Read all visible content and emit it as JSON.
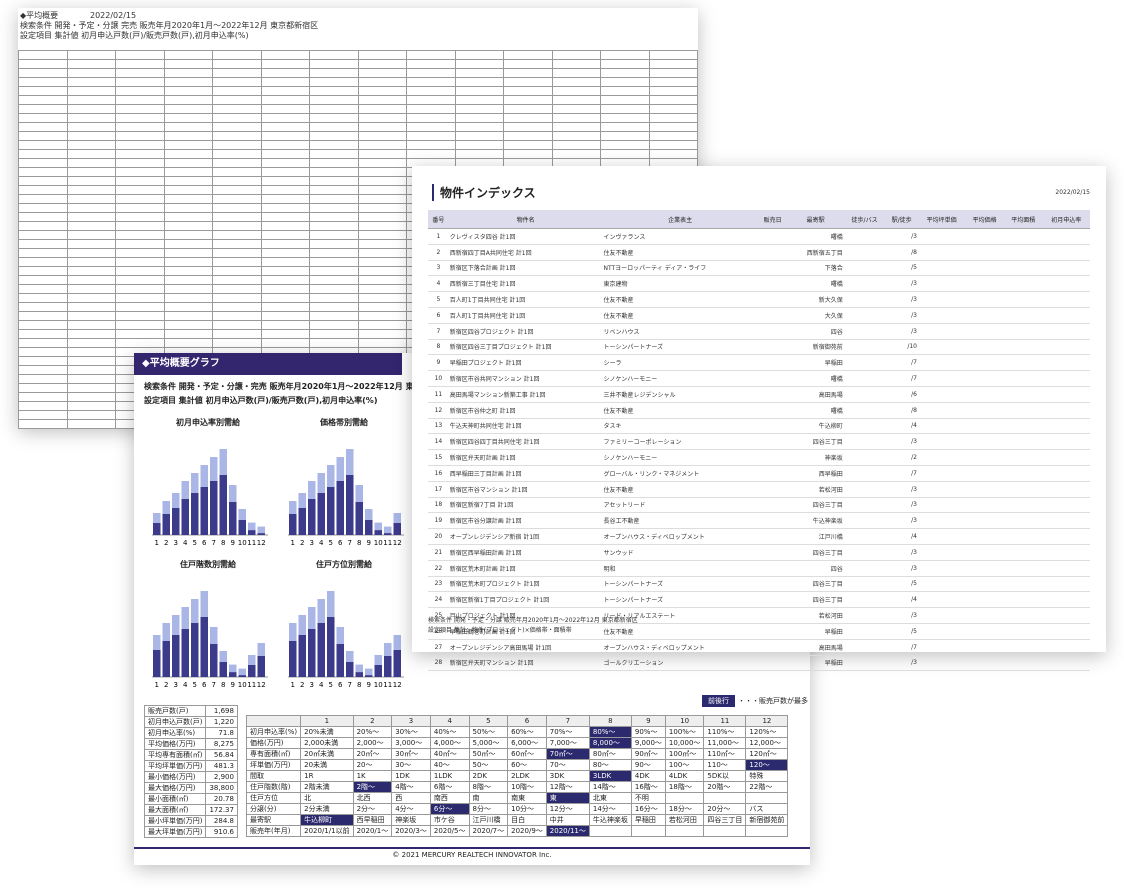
{
  "back": {
    "title": "◆平均概要",
    "date": "2022/02/15",
    "cond1": "検索条件 開発・予定・分譲 完売 販売年月2020年1月～2022年12月 東京都新宿区",
    "cond2": "設定項目 集計値 初月申込戸数(戸)/販売戸数(戸),初月申込率(%)"
  },
  "mid": {
    "title": "◆平均概要グラフ",
    "cond1": "検索条件 開発・予定・分譲・完売 販売年月2020年1月～2022年12月 東京都新宿区",
    "cond2": "設定項目 集計値 初月申込戸数(戸)/販売戸数(戸),初月申込率(%)",
    "charts": [
      {
        "title": "初月申込率別需給"
      },
      {
        "title": "価格帯別需給"
      },
      {
        "title": "住戸階数別需給"
      },
      {
        "title": "住戸方位別需給"
      }
    ],
    "axis_ticks": [
      "1",
      "2",
      "3",
      "4",
      "5",
      "6",
      "7",
      "8",
      "9",
      "10",
      "11",
      "12"
    ],
    "legend_button": "前後行",
    "legend_note": "・・・販売戸数が最多",
    "summary": [
      {
        "label": "販売戸数(戸)",
        "value": "1,698"
      },
      {
        "label": "初月申込戸数(戸)",
        "value": "1,220"
      },
      {
        "label": "初月申込率(%)",
        "value": "71.8"
      },
      {
        "label": "平均価格(万円)",
        "value": "8,275"
      },
      {
        "label": "平均専有面積(㎡)",
        "value": "56.84"
      },
      {
        "label": "平均坪単価(万円)",
        "value": "481.3"
      },
      {
        "label": "最小価格(万円)",
        "value": "2,900"
      },
      {
        "label": "最大価格(万円)",
        "value": "38,800"
      },
      {
        "label": "最小面積(㎡)",
        "value": "20.78"
      },
      {
        "label": "最大面積(㎡)",
        "value": "172.37"
      },
      {
        "label": "最小坪単価(万円)",
        "value": "284.8"
      },
      {
        "label": "最大坪単価(万円)",
        "value": "910.6"
      }
    ],
    "matrix_header": [
      "",
      "1",
      "2",
      "3",
      "4",
      "5",
      "6",
      "7",
      "8",
      "9",
      "10",
      "11",
      "12"
    ],
    "matrix": [
      [
        "初月申込率(%)",
        "20%未満",
        "20%～",
        "30%～",
        "40%～",
        "50%～",
        "60%～",
        "70%～",
        "80%～",
        "90%～",
        "100%～",
        "110%～",
        "120%～"
      ],
      [
        "価格(万円)",
        "2,000未満",
        "2,000～",
        "3,000～",
        "4,000～",
        "5,000～",
        "6,000～",
        "7,000～",
        "8,000～",
        "9,000～",
        "10,000～",
        "11,000～",
        "12,000～"
      ],
      [
        "専有面積(㎡)",
        "20㎡未満",
        "20㎡～",
        "30㎡～",
        "40㎡～",
        "50㎡～",
        "60㎡～",
        "70㎡～",
        "80㎡～",
        "90㎡～",
        "100㎡～",
        "110㎡～",
        "120㎡～"
      ],
      [
        "坪単価(万円)",
        "20未満",
        "20～",
        "30～",
        "40～",
        "50～",
        "60～",
        "70～",
        "80～",
        "90～",
        "100～",
        "110～",
        "120～"
      ],
      [
        "間取",
        "1R",
        "1K",
        "1DK",
        "1LDK",
        "2DK",
        "2LDK",
        "3DK",
        "3LDK",
        "4DK",
        "4LDK",
        "5DK以",
        "特殊"
      ],
      [
        "住戸階数(階)",
        "2階未満",
        "2階～",
        "4階～",
        "6階～",
        "8階～",
        "10階～",
        "12階～",
        "14階～",
        "16階～",
        "18階～",
        "20階～",
        "22階～"
      ],
      [
        "住戸方位",
        "北",
        "北西",
        "西",
        "南西",
        "南",
        "南東",
        "東",
        "北東",
        "不明",
        "",
        "",
        ""
      ],
      [
        "分譲(分)",
        "2分未満",
        "2分～",
        "4分～",
        "6分～",
        "8分～",
        "10分～",
        "12分～",
        "14分～",
        "16分～",
        "18分～",
        "20分～",
        "バス"
      ],
      [
        "最寄駅",
        "牛込柳町",
        "西早稲田",
        "神楽坂",
        "市ケ谷",
        "江戸川橋",
        "目白",
        "中井",
        "牛込神楽坂",
        "早稲田",
        "若松河田",
        "四谷三丁目",
        "新宿御苑前"
      ],
      [
        "販売年(年月)",
        "2020/1/1以前",
        "2020/1～",
        "2020/3～",
        "2020/5～",
        "2020/7～",
        "2020/9～",
        "2020/11～",
        "",
        "",
        "",
        "",
        ""
      ]
    ],
    "footer": "© 2021 MERCURY REALTECH INNOVATOR Inc."
  },
  "front": {
    "title": "物件インデックス",
    "date": "2022/02/15",
    "columns": [
      "番号",
      "物件名",
      "企業表主",
      "販売日",
      "最寄駅",
      "徒歩/バス",
      "駅/徒歩",
      "平均坪単価",
      "平均価格",
      "平均面積",
      "初月申込率"
    ],
    "rows": [
      {
        "no": "1",
        "name": "クレヴィスタ四谷 計1回",
        "company": "インヴァランス",
        "station": "曙橋",
        "walk": "/3"
      },
      {
        "no": "2",
        "name": "西新宿四丁目A共同住宅 計1回",
        "company": "住友不動産",
        "station": "西新宿五丁目",
        "walk": "/8"
      },
      {
        "no": "3",
        "name": "新宿区下落合計画 計1回",
        "company": "NTTヨーロッパーティ ディア・ライフ",
        "station": "下落合",
        "walk": "/5"
      },
      {
        "no": "4",
        "name": "西新宿三丁目住宅 計1回",
        "company": "東京建物",
        "station": "曙橋",
        "walk": "/3"
      },
      {
        "no": "5",
        "name": "百人町1丁目共同住宅 計1回",
        "company": "住友不動産",
        "station": "新大久保",
        "walk": "/3"
      },
      {
        "no": "6",
        "name": "百人町1丁目共同住宅 計1回",
        "company": "住友不動産",
        "station": "大久保",
        "walk": "/3"
      },
      {
        "no": "7",
        "name": "新宿区四谷プロジェクト 計1回",
        "company": "リベンハウス",
        "station": "四谷",
        "walk": "/3"
      },
      {
        "no": "8",
        "name": "新宿区四谷三丁目プロジェクト 計1回",
        "company": "トーシンパートナーズ",
        "station": "新宿御苑前",
        "walk": "/10"
      },
      {
        "no": "9",
        "name": "早稲田プロジェクト 計1回",
        "company": "シーラ",
        "station": "早稲田",
        "walk": "/7"
      },
      {
        "no": "10",
        "name": "新宿区市谷共同マンション 計1回",
        "company": "シノケンハーモニー",
        "station": "曙橋",
        "walk": "/7"
      },
      {
        "no": "11",
        "name": "高田馬場マンション新築工事 計1回",
        "company": "三井不動産レジデンシャル",
        "station": "高田馬場",
        "walk": "/6"
      },
      {
        "no": "12",
        "name": "新宿区市谷仲之町 計1回",
        "company": "住友不動産",
        "station": "曙橋",
        "walk": "/8"
      },
      {
        "no": "13",
        "name": "牛込天神町共同住宅 計1回",
        "company": "タスキ",
        "station": "牛込柳町",
        "walk": "/4"
      },
      {
        "no": "14",
        "name": "新宿区四谷四丁目共同住宅 計1回",
        "company": "ファミリーコーポレーション",
        "station": "四谷三丁目",
        "walk": "/3"
      },
      {
        "no": "15",
        "name": "新宿区弁天町計画 計1回",
        "company": "シノケンハーモニー",
        "station": "神楽坂",
        "walk": "/2"
      },
      {
        "no": "16",
        "name": "西早稲田三丁目計画 計1回",
        "company": "グローバル・リンク・マネジメント",
        "station": "西早稲田",
        "walk": "/7"
      },
      {
        "no": "17",
        "name": "新宿区市谷マンション 計1回",
        "company": "住友不動産",
        "station": "若松河田",
        "walk": "/3"
      },
      {
        "no": "18",
        "name": "新宿区新宿7丁目 計1回",
        "company": "アセットリード",
        "station": "四谷三丁目",
        "walk": "/3"
      },
      {
        "no": "19",
        "name": "新宿区市谷分譲計画 計1回",
        "company": "長谷工不動産",
        "station": "牛込神楽坂",
        "walk": "/3"
      },
      {
        "no": "20",
        "name": "オープンレジデンシア新宿 計1回",
        "company": "オープンハウス・ディベロップメント",
        "station": "江戸川橋",
        "walk": "/4"
      },
      {
        "no": "21",
        "name": "新宿区西早稲田計画 計1回",
        "company": "サンウッド",
        "station": "四谷三丁目",
        "walk": "/3"
      },
      {
        "no": "22",
        "name": "新宿区荒木町計画 計1回",
        "company": "明和",
        "station": "四谷",
        "walk": "/3"
      },
      {
        "no": "23",
        "name": "新宿区荒木町プロジェクト 計1回",
        "company": "トーシンパートナーズ",
        "station": "四谷三丁目",
        "walk": "/5"
      },
      {
        "no": "24",
        "name": "新宿区新宿1丁目プロジェクト 計1回",
        "company": "トーシンパートナーズ",
        "station": "四谷三丁目",
        "walk": "/4"
      },
      {
        "no": "25",
        "name": "戸山プロジェクト 計1回",
        "company": "リード・リアルエステート",
        "station": "若松河田",
        "walk": "/3"
      },
      {
        "no": "26",
        "name": "早稲田鶴巻町計画 計1回",
        "company": "住友不動産",
        "station": "早稲田",
        "walk": "/5"
      },
      {
        "no": "27",
        "name": "オープンレジデンシア高田馬場 計1回",
        "company": "オープンハウス・ディベロップメント",
        "station": "高田馬場",
        "walk": "/7"
      },
      {
        "no": "28",
        "name": "新宿区弁天町マンション 計1回",
        "company": "ゴールクリエーション",
        "station": "早稲田",
        "walk": "/3"
      }
    ],
    "foot1": "検索条件 開発・予定・分譲 販売年月2020年1月～2022年12月 東京都新宿区",
    "foot2": "設定項目 集計：物件(プロジェクト)×価格帯・面積帯"
  }
}
